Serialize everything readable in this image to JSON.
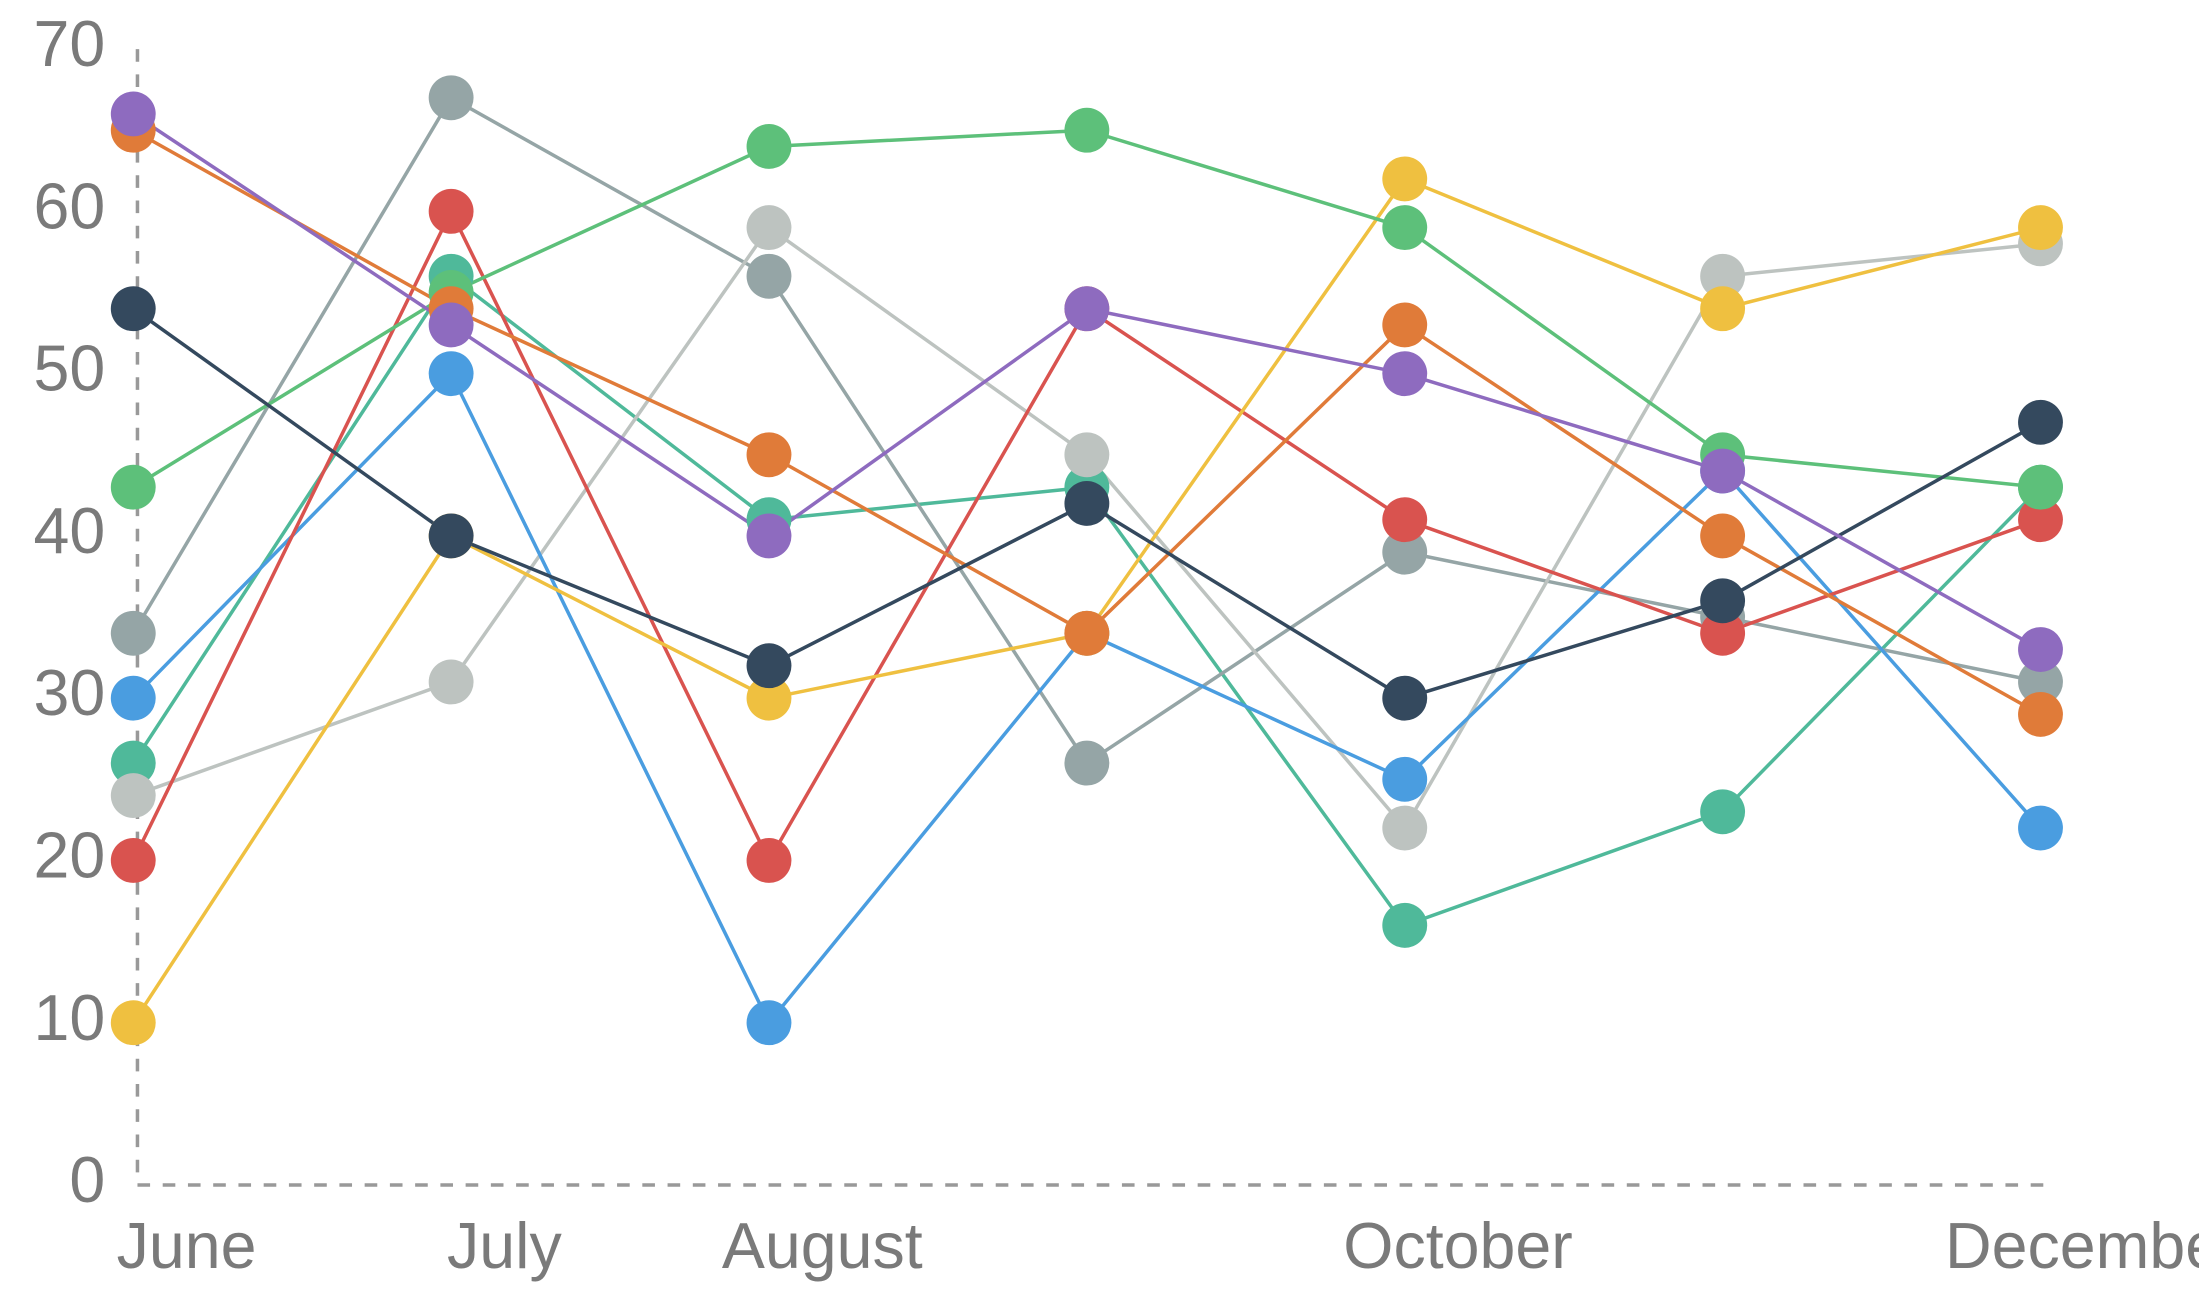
{
  "chart_data": {
    "type": "line",
    "categories": [
      "June",
      "July",
      "August",
      null,
      "October",
      null,
      "December"
    ],
    "ylim": [
      0,
      70
    ],
    "yticks": [
      0,
      10,
      20,
      30,
      40,
      50,
      60,
      70
    ],
    "series": [
      {
        "color": "#4fb99a",
        "values": [
          26,
          56,
          41,
          43,
          16,
          23,
          43
        ]
      },
      {
        "color": "#95a5a6",
        "values": [
          34,
          67,
          56,
          26,
          39,
          35,
          31
        ]
      },
      {
        "color": "#bdc3c0",
        "values": [
          24,
          31,
          59,
          45,
          22,
          56,
          58
        ]
      },
      {
        "color": "#4a9de0",
        "values": [
          30,
          50,
          10,
          34,
          25,
          44,
          22
        ]
      },
      {
        "color": "#d9534f",
        "values": [
          20,
          60,
          20,
          54,
          41,
          34,
          41
        ]
      },
      {
        "color": "#efc040",
        "values": [
          10,
          40,
          30,
          34,
          62,
          54,
          59
        ]
      },
      {
        "color": "#5dc07a",
        "values": [
          43,
          55,
          64,
          65,
          59,
          45,
          43
        ]
      },
      {
        "color": "#e07b39",
        "values": [
          65,
          54,
          45,
          34,
          53,
          40,
          29
        ]
      },
      {
        "color": "#34495e",
        "values": [
          54,
          40,
          32,
          42,
          30,
          36,
          47
        ]
      },
      {
        "color": "#8e6bbf",
        "values": [
          66,
          53,
          40,
          54,
          50,
          44,
          33
        ]
      }
    ]
  }
}
